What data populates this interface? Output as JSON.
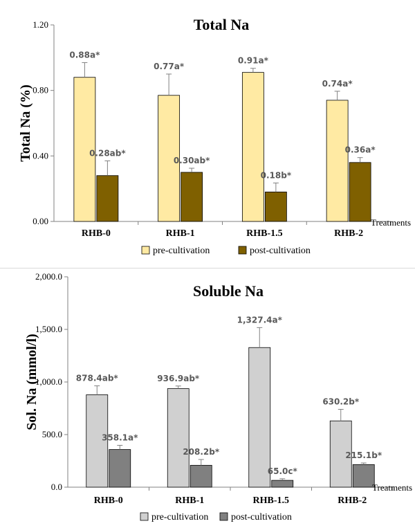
{
  "chart_data": [
    {
      "type": "bar",
      "title": "Total Na",
      "ylabel": "Total Na (%)",
      "xlabel": "Treatments",
      "categories": [
        "RHB-0",
        "RHB-1",
        "RHB-1.5",
        "RHB-2"
      ],
      "ylim": [
        0,
        1.2
      ],
      "yticks": [
        "0.00",
        "0.40",
        "0.80",
        "1.20"
      ],
      "ytick_values": [
        0,
        0.4,
        0.8,
        1.2
      ],
      "grid": false,
      "legend_position": "bottom",
      "series": [
        {
          "name": "pre-cultivation",
          "color": "#ffeaa3",
          "values": [
            0.88,
            0.77,
            0.91,
            0.74
          ],
          "errors": [
            0.09,
            0.13,
            0.025,
            0.055
          ],
          "labels": [
            "0.88a*",
            "0.77a*",
            "0.91a*",
            "0.74a*"
          ]
        },
        {
          "name": "post-cultivation",
          "color": "#7f6000",
          "values": [
            0.28,
            0.3,
            0.18,
            0.36
          ],
          "errors": [
            0.09,
            0.025,
            0.055,
            0.03
          ],
          "labels": [
            "0.28ab*",
            "0.30ab*",
            "0.18b*",
            "0.36a*"
          ]
        }
      ]
    },
    {
      "type": "bar",
      "title": "Soluble Na",
      "ylabel": "Sol. Na (mmol/l)",
      "xlabel": "Treatments",
      "categories": [
        "RHB-0",
        "RHB-1",
        "RHB-1.5",
        "RHB-2"
      ],
      "ylim": [
        0,
        2000
      ],
      "yticks": [
        "0.0",
        "500.0",
        "1,000.0",
        "1,500.0",
        "2,000.0"
      ],
      "ytick_values": [
        0,
        500,
        1000,
        1500,
        2000
      ],
      "grid": false,
      "legend_position": "bottom",
      "series": [
        {
          "name": "pre-cultivation",
          "color": "#d0d0d0",
          "values": [
            878.4,
            936.9,
            1327.4,
            630.2
          ],
          "errors": [
            85,
            25,
            190,
            110
          ],
          "labels": [
            "878.4ab*",
            "936.9ab*",
            "1,327.4a*",
            "630.2b*"
          ]
        },
        {
          "name": "post-cultivation",
          "color": "#808080",
          "values": [
            358.1,
            208.2,
            65.0,
            215.1
          ],
          "errors": [
            40,
            55,
            15,
            15
          ],
          "labels": [
            "358.1a*",
            "208.2b*",
            "65.0c*",
            "215.1b*"
          ]
        }
      ]
    }
  ]
}
